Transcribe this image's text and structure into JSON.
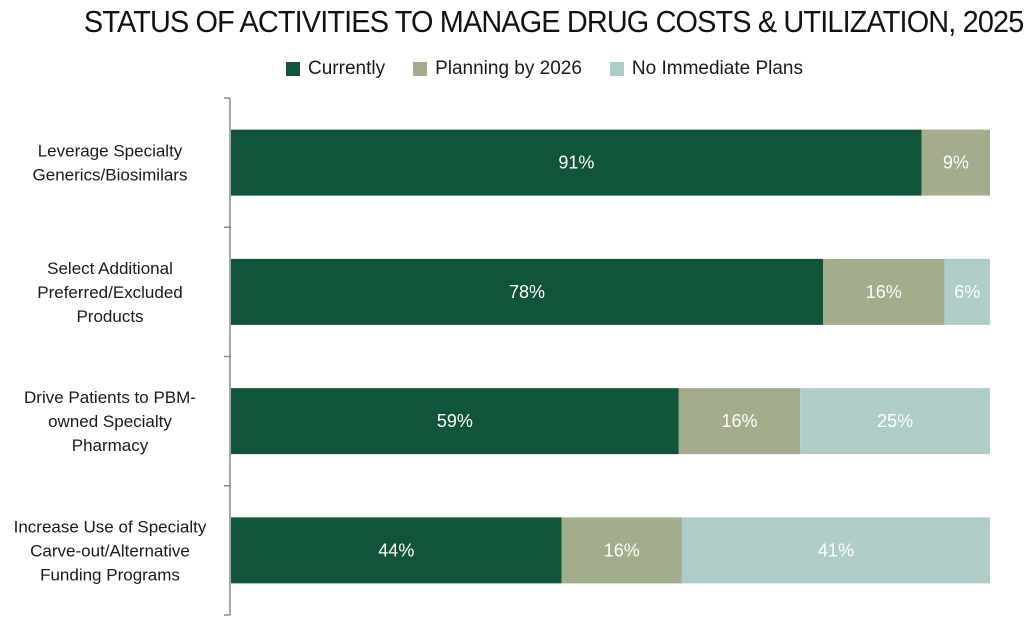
{
  "chart_data": {
    "type": "bar",
    "orientation": "horizontal",
    "stacked": true,
    "title": "STATUS OF ACTIVITIES TO MANAGE DRUG COSTS & UTILIZATION, 2025",
    "xlabel": "",
    "ylabel": "",
    "legend_position": "top-center",
    "grid": false,
    "categories": [
      [
        "Leverage Specialty",
        "Generics/Biosimilars"
      ],
      [
        "Select Additional",
        "Preferred/Excluded",
        "Products"
      ],
      [
        "Drive Patients to PBM-",
        "owned Specialty",
        "Pharmacy"
      ],
      [
        "Increase Use of Specialty",
        "Carve-out/Alternative",
        "Funding Programs"
      ]
    ],
    "series": [
      {
        "name": "Currently",
        "color": "#10553A",
        "values": [
          91,
          78,
          59,
          44
        ]
      },
      {
        "name": "Planning by 2026",
        "color": "#A2AD8B",
        "values": [
          9,
          16,
          16,
          16
        ]
      },
      {
        "name": "No Immediate Plans",
        "color": "#AFCDC8",
        "values": [
          0,
          6,
          25,
          41
        ]
      }
    ],
    "value_suffix": "%"
  }
}
